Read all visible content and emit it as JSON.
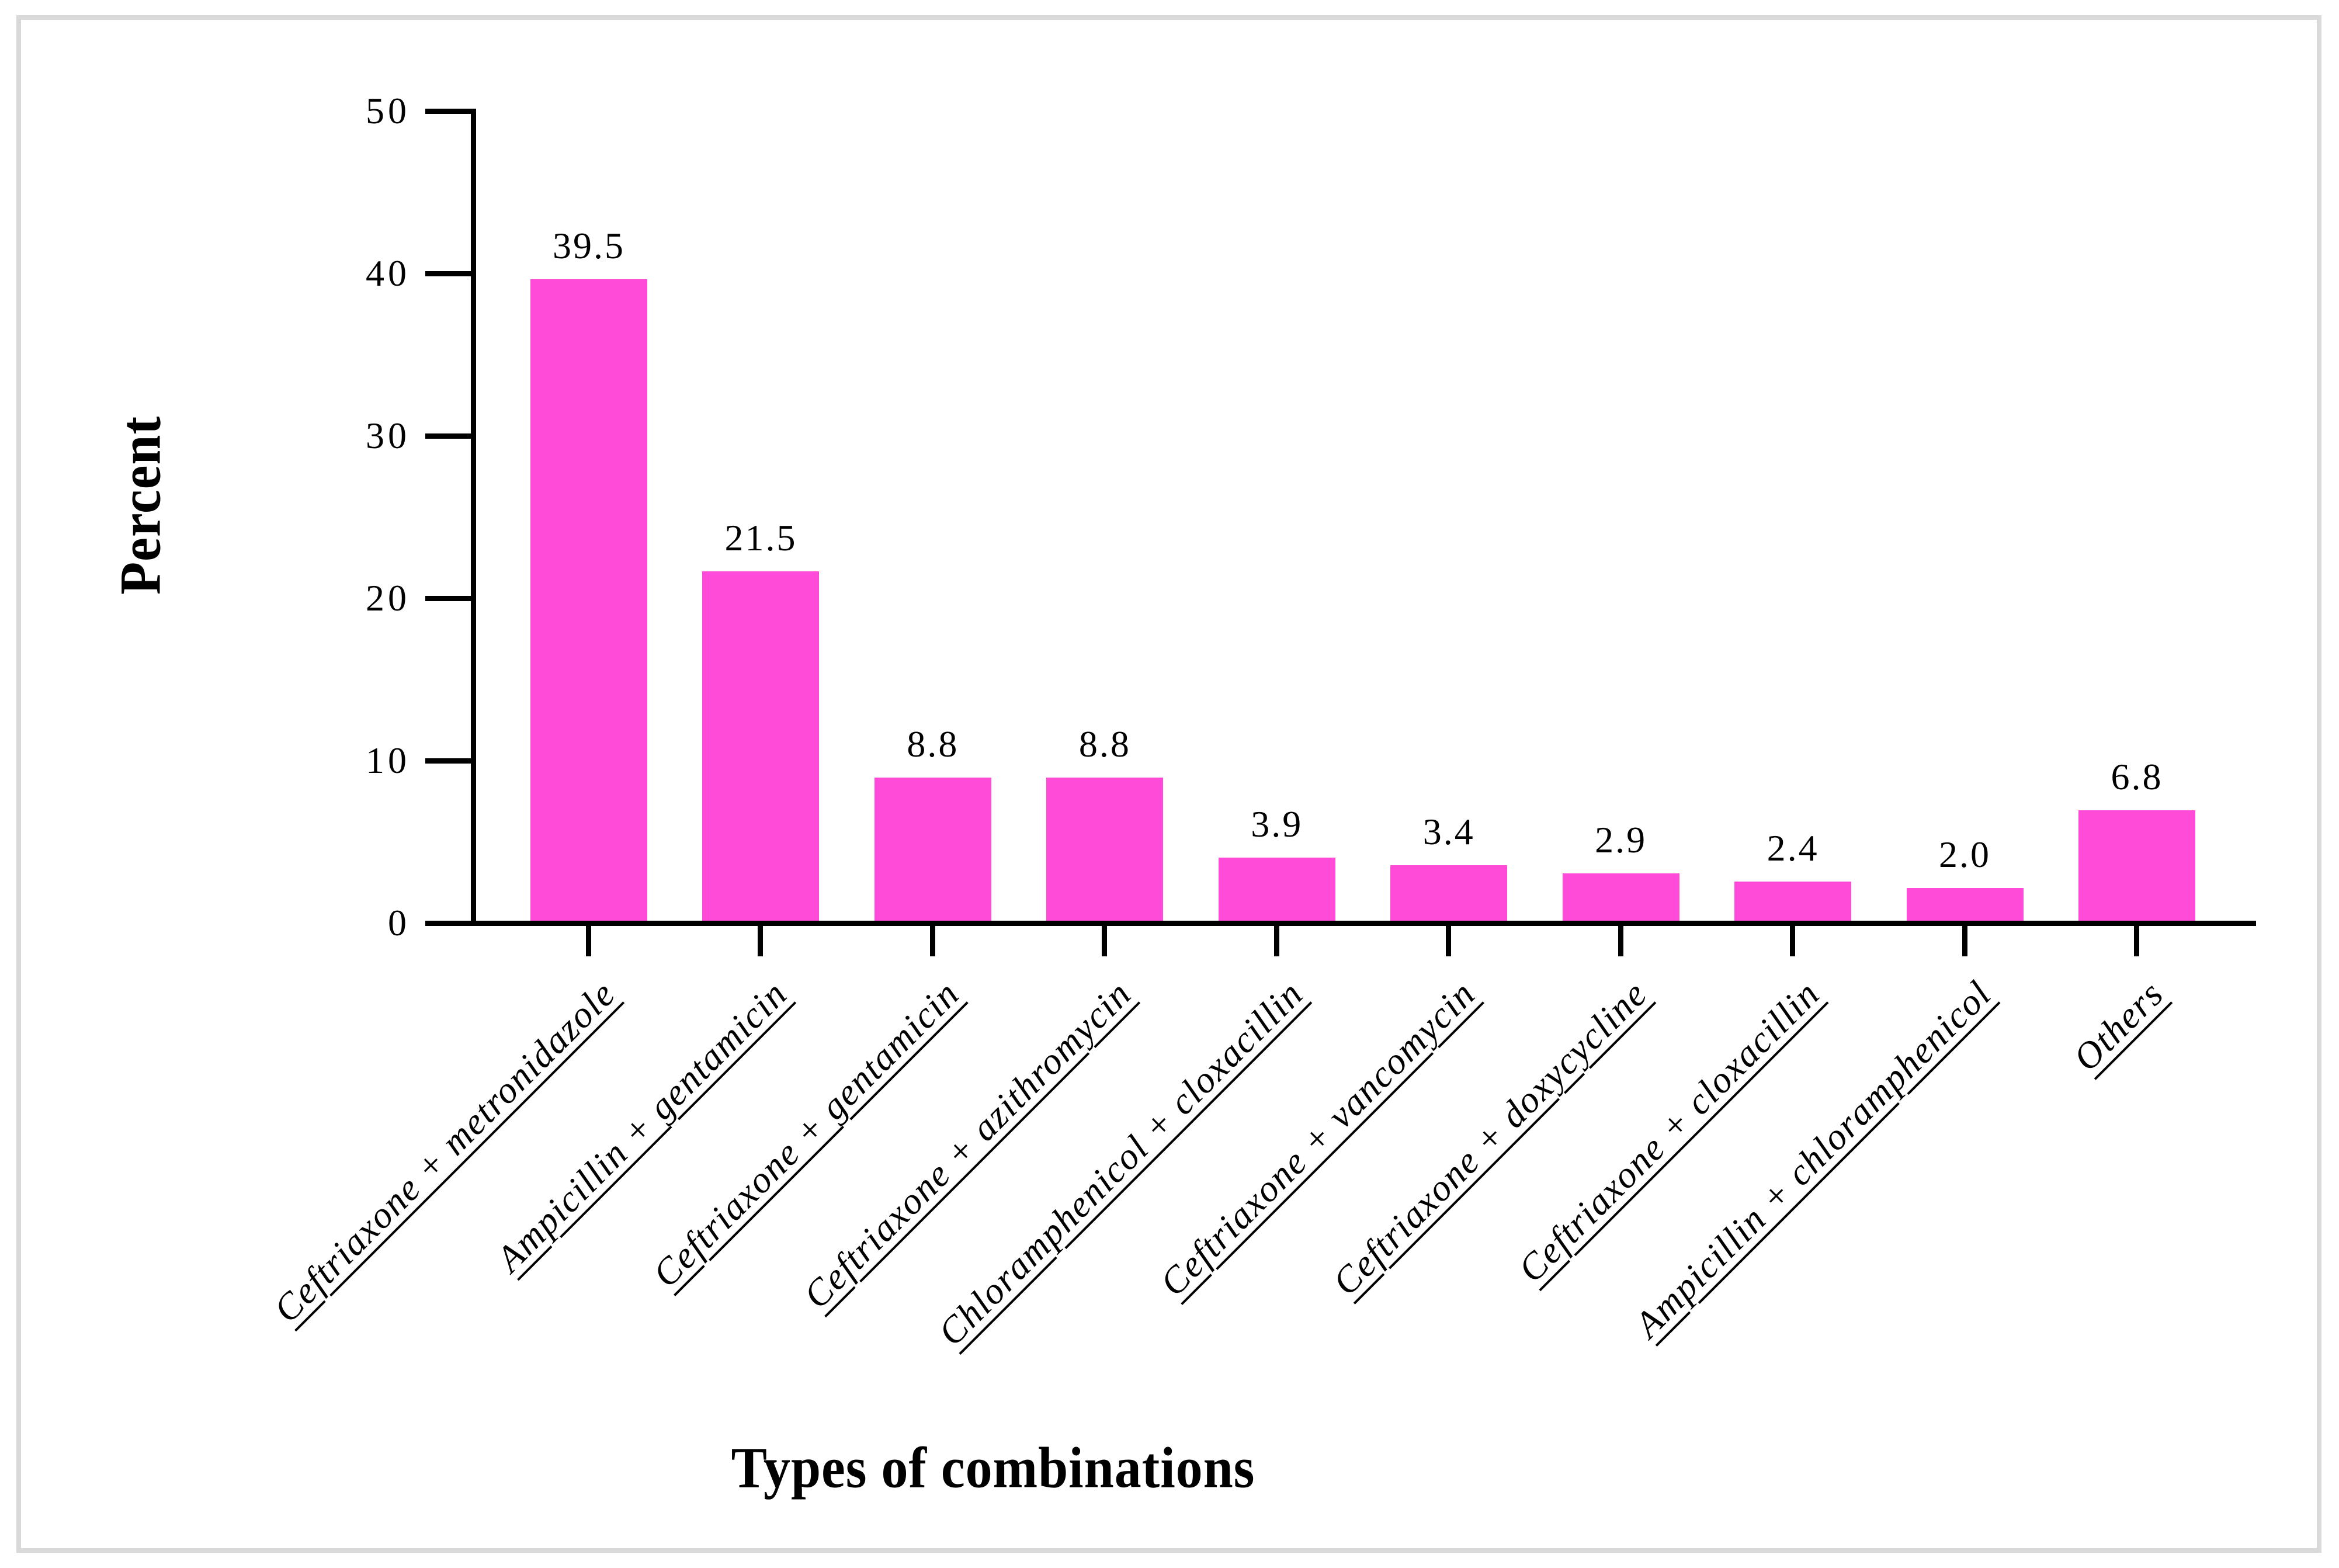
{
  "frame": {
    "border_color": "#d9d9d9",
    "background": "#ffffff"
  },
  "chart_data": {
    "type": "bar",
    "title": "",
    "xlabel": "Types of combinations",
    "ylabel": "Percent",
    "ylim": [
      0,
      50
    ],
    "yticks": [
      0,
      10,
      20,
      30,
      40,
      50
    ],
    "grid": false,
    "legend": "none",
    "bar_color": "#ff4bd8",
    "categories": [
      "Ceftriaxone + metronidazole",
      "Ampicillin + gentamicin",
      "Ceftriaxone + gentamicin",
      "Ceftriaxone + azithromycin",
      "Chloramphenicol + cloxacillin",
      "Ceftriaxone + vancomycin",
      "Ceftriaxone + doxycycline",
      "Ceftriaxone + cloxacillin",
      "Ampicillin + chloramphenicol",
      "Others"
    ],
    "values": [
      39.5,
      21.5,
      8.8,
      8.8,
      3.9,
      3.4,
      2.9,
      2.4,
      2.0,
      6.8
    ],
    "value_labels": [
      "39.5",
      "21.5",
      "8.8",
      "8.8",
      "3.9",
      "3.4",
      "2.9",
      "2.4",
      "2.0",
      "6.8"
    ]
  }
}
